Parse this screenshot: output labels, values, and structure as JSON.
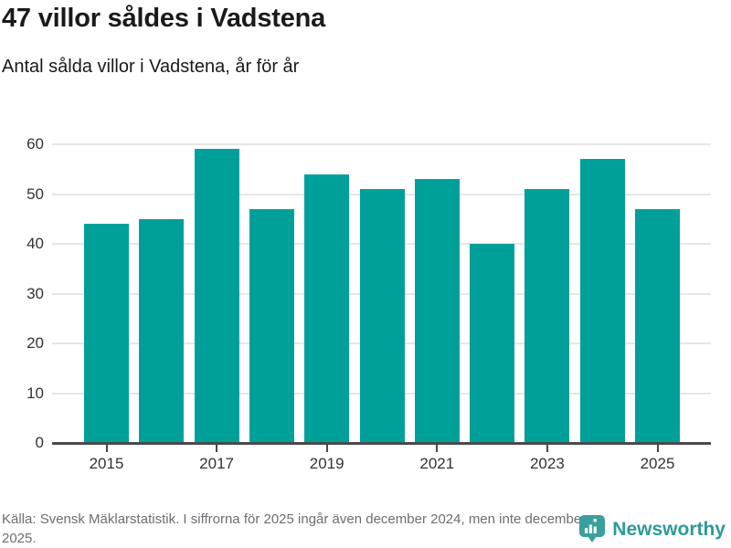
{
  "header": {
    "title": "47 villor såldes i Vadstena",
    "subtitle": "Antal sålda villor i Vadstena, år för år"
  },
  "chart_data": {
    "type": "bar",
    "title": "47 villor såldes i Vadstena",
    "subtitle": "Antal sålda villor i Vadstena, år för år",
    "categories": [
      "2015",
      "2016",
      "2017",
      "2018",
      "2019",
      "2020",
      "2021",
      "2022",
      "2023",
      "2024",
      "2025"
    ],
    "values": [
      44,
      45,
      59,
      47,
      54,
      51,
      53,
      40,
      51,
      57,
      47
    ],
    "xlabel": "",
    "ylabel": "",
    "ylim": [
      0,
      60
    ],
    "yticks": [
      0,
      10,
      20,
      30,
      40,
      50,
      60
    ],
    "xtick_labels": [
      "2015",
      "2017",
      "2019",
      "2021",
      "2023",
      "2025"
    ],
    "xtick_every": 2,
    "bar_color": "#00a09a",
    "grid": "horizontal",
    "gridline_color": "#e6e6e6",
    "axis_color": "#4a4a4a",
    "tick_label_color": "#333333",
    "legend": "none"
  },
  "footer": {
    "source_text": "Källa: Svensk Mäklarstatistik. I siffrorna för 2025 ingår även december 2024, men inte december 2025.",
    "logo_text": "Newsworthy",
    "logo_color": "#2c9b99"
  }
}
